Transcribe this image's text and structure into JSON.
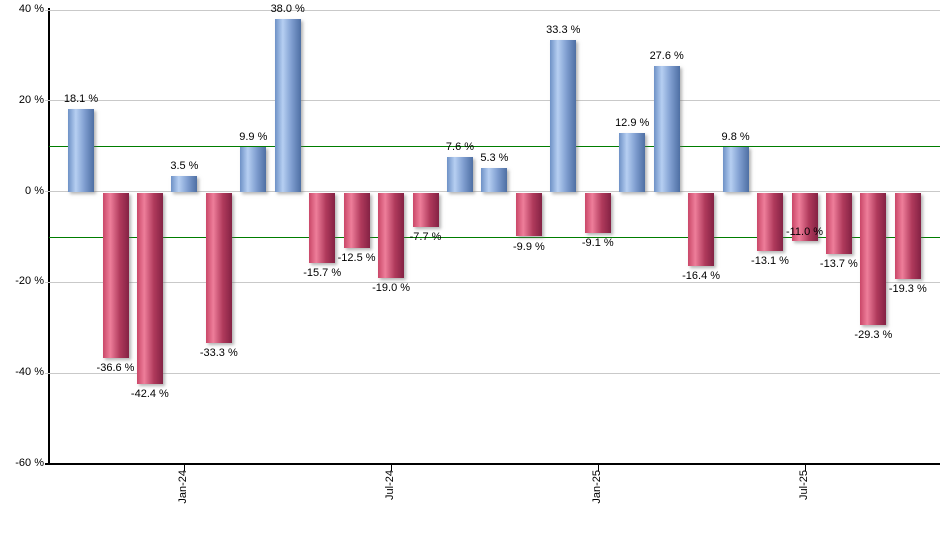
{
  "chart_data": {
    "type": "bar",
    "title": "",
    "unit": "%",
    "values": [
      18.1,
      -36.6,
      -42.4,
      3.5,
      -33.3,
      9.9,
      38.0,
      -15.7,
      -12.5,
      -19.0,
      -7.7,
      7.6,
      5.3,
      -9.9,
      33.3,
      -9.1,
      12.9,
      27.6,
      -16.4,
      9.8,
      -13.1,
      -11.0,
      -13.7,
      -29.3,
      -19.3
    ],
    "data_labels": [
      "18.1 %",
      "-36.6 %",
      "-42.4 %",
      "3.5 %",
      "-33.3 %",
      "9.9 %",
      "38.0 %",
      "-15.7 %",
      "-12.5 %",
      "-19.0 %",
      "-7.7 %",
      "7.6 %",
      "5.3 %",
      "-9.9 %",
      "33.3 %",
      "-9.1 %",
      "12.9 %",
      "27.6 %",
      "-16.4 %",
      "9.8 %",
      "-13.1 %",
      "-11.0 %",
      "-13.7 %",
      "-29.3 %",
      "-19.3 %"
    ],
    "x_ticks": [
      {
        "label": "Jan-24",
        "bar_index": 3
      },
      {
        "label": "Jul-24",
        "bar_index": 9
      },
      {
        "label": "Jan-25",
        "bar_index": 15
      },
      {
        "label": "Jul-25",
        "bar_index": 21
      }
    ],
    "y_ticks": [
      {
        "value": 40,
        "label": "40 %"
      },
      {
        "value": 20,
        "label": "20 %"
      },
      {
        "value": 0,
        "label": "0 %"
      },
      {
        "value": -20,
        "label": "-20 %"
      },
      {
        "value": -40,
        "label": "-40 %"
      },
      {
        "value": -60,
        "label": "-60 %"
      }
    ],
    "ylim": [
      -60,
      40
    ],
    "grid": true,
    "gridline_values": [
      40,
      20,
      0,
      -20,
      -40
    ],
    "reference_lines": [
      {
        "value": 10
      },
      {
        "value": -10
      }
    ],
    "legend_position": "none",
    "label_dy": [
      0,
      0,
      0,
      0,
      0,
      0,
      0,
      0,
      0,
      0,
      0,
      0,
      0,
      0,
      0,
      0,
      0,
      0,
      0,
      0,
      0,
      -20,
      0,
      0,
      0
    ],
    "colors": {
      "positive_base": "#6e91c6",
      "positive_light": "#b6cff2",
      "positive_mid": "#7d9cce",
      "positive_edge": "#4e6fa3",
      "negative_base": "#c94768",
      "negative_light": "#ee7e9a",
      "negative_mid": "#b03a5c",
      "negative_edge": "#842244",
      "gridline": "#c9c9c9",
      "axis": "#000000",
      "reference_line": "#007d00",
      "label_text": "#000000",
      "background": "#ffffff"
    }
  }
}
